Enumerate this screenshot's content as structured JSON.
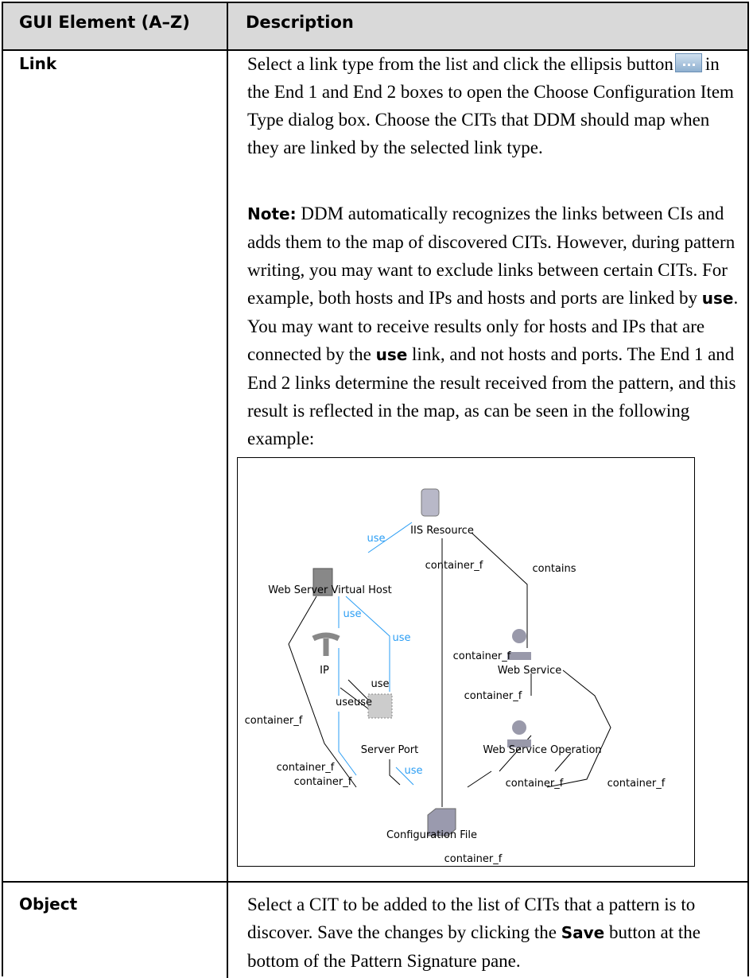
{
  "table": {
    "headers": [
      "GUI Element (A–Z)",
      "Description"
    ],
    "rows": [
      {
        "element": "Link",
        "intro": [
          "Select a link type from the list and click the ellipsis button",
          "in the End 1 and End 2 boxes to open the Choose Configuration Item Type dialog box. Choose the CITs that DDM should map when they are linked by the selected link type."
        ],
        "note": [
          {
            "text": "Note:",
            "bold": true
          },
          {
            "text": " DDM automatically recognizes the links between CIs and adds them to the map of discovered CITs. However, during pattern writing, you may want to exclude links between certain CITs. For example, both hosts and IPs and hosts and ports are linked by ",
            "bold": false
          },
          {
            "text": "use",
            "bold": true
          },
          {
            "text": ". You may want to receive results only for hosts and IPs that are connected by the ",
            "bold": false
          },
          {
            "text": "use",
            "bold": true
          },
          {
            "text": " link, and not hosts and ports. The End 1 and End 2 links determine the result received from the pattern, and this result is reflected in the map, as can be seen in the following example:",
            "bold": false
          }
        ],
        "diagram": {
          "labels": [
            "IIS Resource",
            "use",
            "container_f",
            "contains",
            "Web Server Virtual Host",
            "use",
            "use",
            "IP",
            "container_f",
            "Web Service",
            "use",
            "useuse",
            "container_f",
            "container_f",
            "Server Port",
            "Web Service Operation",
            "container_f",
            "use",
            "container_f",
            "container_f",
            "container_f",
            "Configuration File",
            "container_f"
          ]
        }
      },
      {
        "element": "Object",
        "description": [
          {
            "text": "Select a CIT to be added to the list of CITs that a pattern is to discover. Save the changes by clicking the ",
            "bold": false
          },
          {
            "text": "Save",
            "bold": true
          },
          {
            "text": " button at the bottom of the Pattern Signature pane.",
            "bold": false
          }
        ]
      }
    ]
  }
}
